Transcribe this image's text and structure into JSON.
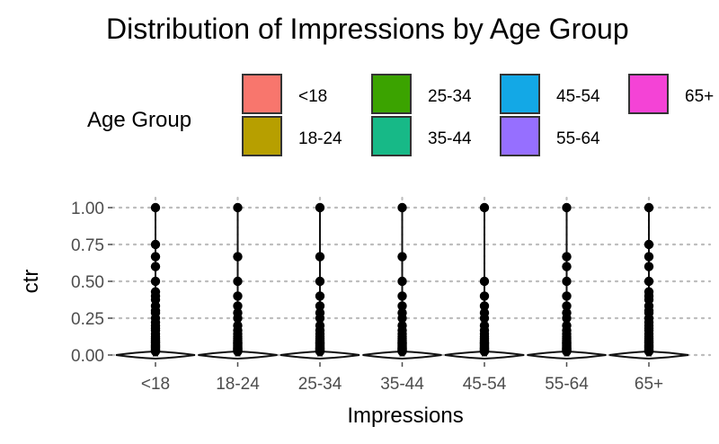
{
  "chart_data": {
    "type": "violin",
    "title": "Distribution of Impressions by Age Group",
    "xlabel": "Impressions",
    "ylabel": "ctr",
    "ylim": [
      0,
      1
    ],
    "y_ticks": [
      "0.00",
      "0.25",
      "0.50",
      "0.75",
      "1.00"
    ],
    "y_tick_values": [
      0,
      0.25,
      0.5,
      0.75,
      1.0
    ],
    "categories": [
      "<18",
      "18-24",
      "25-34",
      "35-44",
      "45-54",
      "55-64",
      "65+"
    ],
    "grid": true,
    "grid_style": "dotted",
    "legend": {
      "title": "Age Group",
      "placement": "top",
      "items": [
        {
          "label": "<18",
          "color": "#F8766D"
        },
        {
          "label": "18-24",
          "color": "#B79F00"
        },
        {
          "label": "25-34",
          "color": "#3BA300"
        },
        {
          "label": "35-44",
          "color": "#17B987"
        },
        {
          "label": "45-54",
          "color": "#13A8E6"
        },
        {
          "label": "55-64",
          "color": "#966FFF"
        },
        {
          "label": "65+",
          "color": "#F443D6"
        }
      ]
    },
    "boxplots": [
      {
        "category": "<18",
        "median": 0,
        "q1": 0,
        "q3": 0,
        "whisker_low": 0,
        "whisker_high": 1.0,
        "outliers": [
          1.0,
          0.75,
          0.667,
          0.6,
          0.5,
          0.429,
          0.4,
          0.375,
          0.333,
          0.3,
          0.286,
          0.25,
          0.222,
          0.2,
          0.182,
          0.167,
          0.143,
          0.125,
          0.111,
          0.1,
          0.091,
          0.083,
          0.071,
          0.063,
          0.056,
          0.05,
          0.042,
          0.036,
          0.03,
          0.025
        ]
      },
      {
        "category": "18-24",
        "median": 0,
        "q1": 0,
        "q3": 0,
        "whisker_low": 0,
        "whisker_high": 1.0,
        "outliers": [
          1.0,
          0.667,
          0.5,
          0.4,
          0.333,
          0.286,
          0.25,
          0.2,
          0.167,
          0.143,
          0.125,
          0.111,
          0.1,
          0.091,
          0.083,
          0.077,
          0.071,
          0.063,
          0.056,
          0.05,
          0.045,
          0.042,
          0.038,
          0.033,
          0.029,
          0.025
        ]
      },
      {
        "category": "25-34",
        "median": 0,
        "q1": 0,
        "q3": 0,
        "whisker_low": 0,
        "whisker_high": 1.0,
        "outliers": [
          1.0,
          0.667,
          0.5,
          0.4,
          0.333,
          0.286,
          0.25,
          0.2,
          0.167,
          0.143,
          0.125,
          0.111,
          0.1,
          0.091,
          0.083,
          0.077,
          0.071,
          0.063,
          0.056,
          0.05,
          0.045,
          0.042,
          0.038,
          0.033,
          0.029,
          0.025
        ]
      },
      {
        "category": "35-44",
        "median": 0,
        "q1": 0,
        "q3": 0,
        "whisker_low": 0,
        "whisker_high": 1.0,
        "outliers": [
          1.0,
          0.667,
          0.5,
          0.4,
          0.333,
          0.286,
          0.25,
          0.2,
          0.167,
          0.143,
          0.125,
          0.111,
          0.1,
          0.091,
          0.083,
          0.077,
          0.071,
          0.063,
          0.056,
          0.05,
          0.045,
          0.042,
          0.038,
          0.033,
          0.029,
          0.025
        ]
      },
      {
        "category": "45-54",
        "median": 0,
        "q1": 0,
        "q3": 0,
        "whisker_low": 0,
        "whisker_high": 1.0,
        "outliers": [
          1.0,
          0.5,
          0.4,
          0.333,
          0.286,
          0.25,
          0.2,
          0.167,
          0.143,
          0.125,
          0.111,
          0.1,
          0.091,
          0.083,
          0.077,
          0.071,
          0.063,
          0.056,
          0.05,
          0.045,
          0.042,
          0.038,
          0.033,
          0.029,
          0.025
        ]
      },
      {
        "category": "55-64",
        "median": 0,
        "q1": 0,
        "q3": 0,
        "whisker_low": 0,
        "whisker_high": 1.0,
        "outliers": [
          1.0,
          0.667,
          0.6,
          0.5,
          0.4,
          0.333,
          0.286,
          0.25,
          0.2,
          0.167,
          0.143,
          0.125,
          0.111,
          0.1,
          0.091,
          0.083,
          0.077,
          0.071,
          0.063,
          0.056,
          0.05,
          0.045,
          0.042,
          0.038,
          0.033,
          0.029,
          0.025
        ]
      },
      {
        "category": "65+",
        "median": 0,
        "q1": 0,
        "q3": 0,
        "whisker_low": 0,
        "whisker_high": 1.0,
        "outliers": [
          1.0,
          0.75,
          0.667,
          0.6,
          0.5,
          0.429,
          0.4,
          0.375,
          0.333,
          0.3,
          0.286,
          0.25,
          0.222,
          0.2,
          0.182,
          0.167,
          0.143,
          0.125,
          0.111,
          0.1,
          0.091,
          0.083,
          0.071,
          0.063,
          0.056,
          0.05,
          0.042,
          0.036,
          0.03,
          0.025
        ]
      }
    ]
  }
}
